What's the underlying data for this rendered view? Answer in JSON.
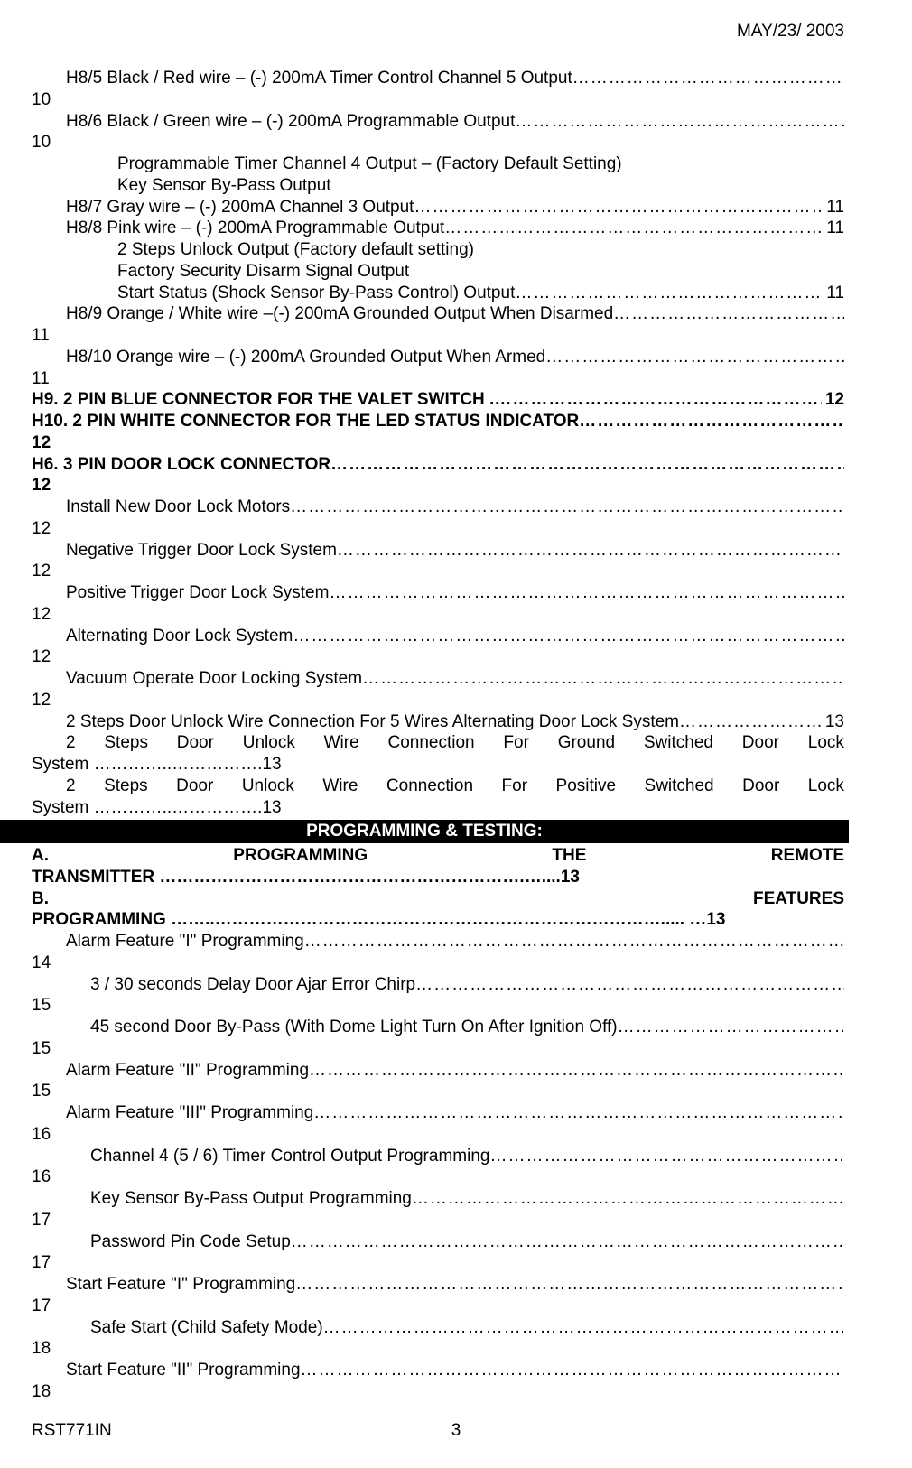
{
  "header_date": "MAY/23/ 2003",
  "footer_left": "RST771IN",
  "footer_center": "3",
  "banner": "PROGRAMMING & TESTING:",
  "lines": [
    {
      "indent": 1,
      "text": "H8/5 Black / Red wire – (-) 200mA Timer Control Channel 5 Output",
      "dots": true,
      "page_below": "10"
    },
    {
      "indent": 1,
      "text": "H8/6 Black / Green wire – (-) 200mA Programmable Output",
      "dots": true,
      "page_below": "10"
    },
    {
      "plain": true,
      "text": "Programmable Timer Channel 4 Output – (Factory Default Setting)"
    },
    {
      "plain": true,
      "text": "Key Sensor By-Pass Output"
    },
    {
      "indent": 1,
      "text": "H8/7 Gray wire – (-) 200mA Channel 3 Output",
      "dots": true,
      "page": "11"
    },
    {
      "indent": 1,
      "text": "H8/8 Pink wire – (-) 200mA Programmable Output",
      "dots": true,
      "page": "11"
    },
    {
      "plain": true,
      "text": "2 Steps Unlock Output (Factory default setting)"
    },
    {
      "plain": true,
      "text": "Factory Security Disarm Signal Output"
    },
    {
      "indent": 2,
      "text": "Start Status (Shock Sensor By-Pass Control) Output",
      "dots": true,
      "page": "11"
    },
    {
      "indent": 1,
      "text": "H8/9 Orange / White wire –(-) 200mA Grounded Output When Disarmed ",
      "dots": true,
      "page_below": "11"
    },
    {
      "indent": 1,
      "text": "H8/10 Orange wire – (-) 200mA Grounded Output When Armed",
      "dots": true,
      "page_below": "11"
    },
    {
      "bold": true,
      "text": "H9. 2 PIN BLUE CONNECTOR FOR THE VALET SWITCH .",
      "dots": true,
      "page": "12"
    },
    {
      "bold": true,
      "text": "H10. 2 PIN WHITE CONNECTOR FOR THE LED STATUS INDICATOR",
      "dots": true,
      "page_below": "12"
    },
    {
      "bold": true,
      "text": "H6. 3 PIN DOOR LOCK CONNECTOR",
      "dots": true,
      "page_below": "12"
    },
    {
      "indent": 1,
      "text": "Install New Door Lock Motors",
      "dots": true,
      "page_below": "12"
    },
    {
      "indent": 1,
      "text": "Negative Trigger Door Lock System",
      "dots": true,
      "page_below": "12"
    },
    {
      "indent": 1,
      "text": "Positive Trigger Door Lock System",
      "dots": true,
      "page_below": "12"
    },
    {
      "indent": 1,
      "text": "Alternating Door Lock System",
      "dots": true,
      "page_below": "12"
    },
    {
      "indent": 1,
      "text": "Vacuum Operate Door Locking System",
      "dots": true,
      "page_below": "12"
    },
    {
      "indent": 1,
      "text": "2 Steps Door Unlock Wire Connection For 5 Wires Alternating Door Lock System",
      "dots": true,
      "page": "13"
    },
    {
      "justify": true,
      "indent": 1,
      "words": [
        "2",
        "Steps",
        "Door",
        "Unlock",
        "Wire",
        "Connection",
        "For",
        "Ground",
        "Switched",
        "Door",
        "Lock"
      ]
    },
    {
      "below_text": "System …………..…………….13"
    },
    {
      "justify": true,
      "indent": 1,
      "words": [
        "2",
        "Steps",
        "Door",
        "Unlock",
        "Wire",
        "Connection",
        "For",
        "Positive",
        "Switched",
        "Door",
        "Lock"
      ]
    },
    {
      "below_text": "System …………..…………….13"
    }
  ],
  "section2": [
    {
      "bold": true,
      "justify": true,
      "words": [
        "A.",
        "PROGRAMMING",
        "THE",
        "REMOTE"
      ]
    },
    {
      "bold": true,
      "below_text": "TRANSMITTER ……………………………………………………….…....13"
    },
    {
      "bold": true,
      "justify": true,
      "words": [
        "B.",
        "FEATURES"
      ]
    },
    {
      "bold": true,
      "below_text": "PROGRAMMING ……..……………………………………………………………………..... …13"
    },
    {
      "indent": 1,
      "text": "Alarm Feature \"I\" Programming",
      "dots": true,
      "page_below": "14"
    },
    {
      "indent": 3,
      "text": "3 / 30 seconds Delay Door Ajar Error Chirp",
      "dots": true,
      "page_below": "15"
    },
    {
      "indent": 3,
      "text": "45 second Door By-Pass (With Dome Light Turn On After Ignition Off)",
      "dots": true,
      "page_below": "15"
    },
    {
      "indent": 1,
      "text": "Alarm Feature \"II\" Programming",
      "dots": true,
      "page_below": "15"
    },
    {
      "indent": 1,
      "text": "Alarm Feature \"III\" Programming",
      "dots": true,
      "page_below": "16"
    },
    {
      "indent": 3,
      "text": "Channel 4 (5 / 6) Timer Control Output Programming",
      "dots": true,
      "page_below": "16"
    },
    {
      "indent": 3,
      "text": "Key Sensor By-Pass Output Programming",
      "dots": true,
      "page_below": "17"
    },
    {
      "indent": 3,
      "text": "Password Pin Code Setup",
      "dots": true,
      "page_below": "17"
    },
    {
      "indent": 1,
      "text": "Start Feature \"I\" Programming",
      "dots": true,
      "page_below": "17"
    },
    {
      "indent": 3,
      "text": "Safe Start (Child Safety Mode)",
      "dots": true,
      "page_below": "18"
    },
    {
      "indent": 1,
      "text": "Start Feature \"II\" Programming",
      "dots": true,
      "page_below": "18"
    }
  ]
}
